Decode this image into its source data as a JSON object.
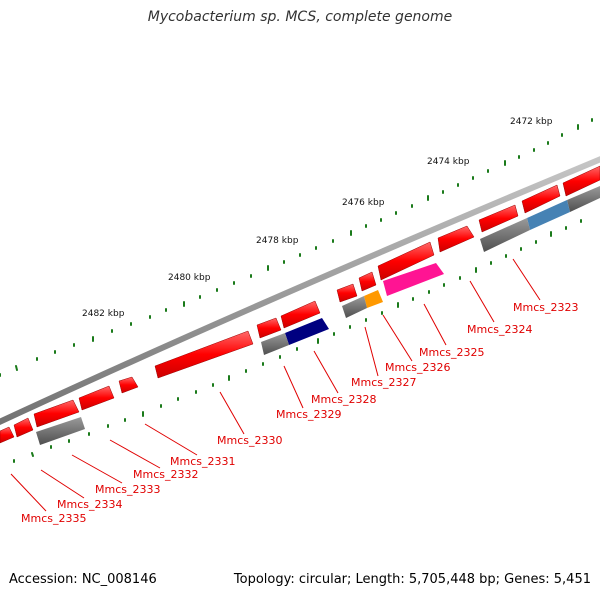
{
  "title": "Mycobacterium sp. MCS, complete genome",
  "footer": {
    "accession": "Accession: NC_008146",
    "info": "Topology: circular; Length: 5,705,448 bp; Genes: 5,451"
  },
  "scale_labels": [
    "2472 kbp",
    "2474 kbp",
    "2476 kbp",
    "2478 kbp",
    "2480 kbp",
    "2482 kbp"
  ],
  "gene_labels": [
    "Mmcs_2323",
    "Mmcs_2324",
    "Mmcs_2325",
    "Mmcs_2326",
    "Mmcs_2327",
    "Mmcs_2328",
    "Mmcs_2329",
    "Mmcs_2330",
    "Mmcs_2331",
    "Mmcs_2332",
    "Mmcs_2333",
    "Mmcs_2334",
    "Mmcs_2335"
  ],
  "colors": {
    "gene_red": "#ff0000",
    "label_red": "#e00000",
    "backbone_gray": "#8c8c8c",
    "feature_gray": "#6b6b6b",
    "tick_green": "#1a7a1a",
    "orange": "#ff9900",
    "magenta": "#ff1493",
    "navy": "#000080",
    "steel_blue": "#4682b4"
  }
}
